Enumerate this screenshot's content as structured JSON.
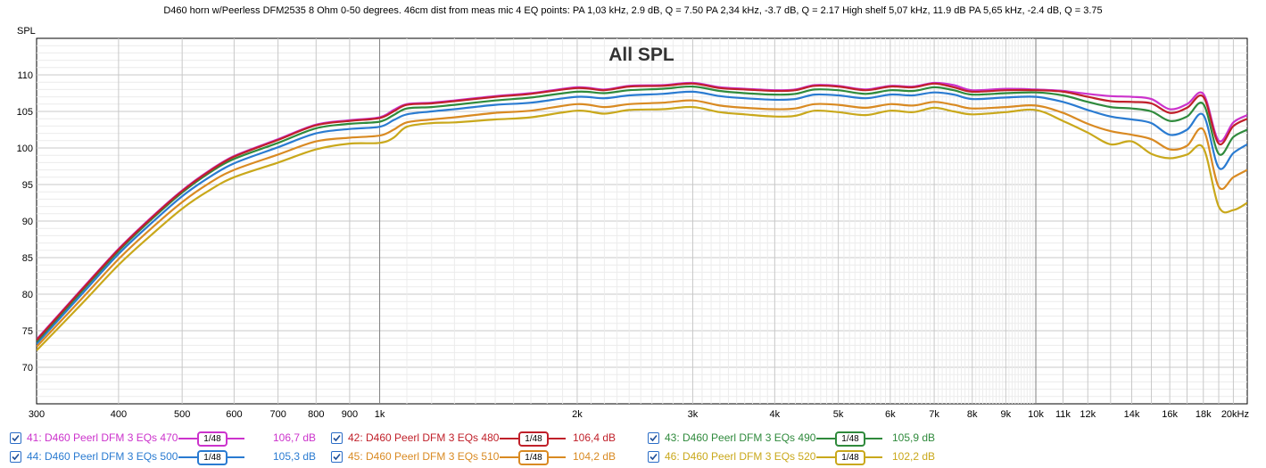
{
  "header": {
    "title": "D460 horn w/Peerless DFM2535 8 Ohm 0-50 degrees. 46cm dist from meas mic 4 EQ points: PA 1,03 kHz, 2.9 dB, Q = 7.50 PA 2,34 kHz, -3.7 dB, Q = 2.17 High shelf 5,07 kHz, 11.9 dB PA 5,65 kHz, -2.4 dB, Q = 3.75"
  },
  "chart_data": {
    "type": "line",
    "title": "All SPL",
    "ylabel": "SPL",
    "xlabel": "",
    "x_scale": "log",
    "xlim": [
      300,
      21000
    ],
    "ylim": [
      65,
      115
    ],
    "grid": true,
    "y_ticks": [
      "70",
      "75",
      "80",
      "85",
      "90",
      "95",
      "100",
      "105",
      "110"
    ],
    "y_tick_values": [
      70,
      75,
      80,
      85,
      90,
      95,
      100,
      105,
      110
    ],
    "x_ticks": [
      {
        "v": 300,
        "label": "300"
      },
      {
        "v": 400,
        "label": "400"
      },
      {
        "v": 500,
        "label": "500"
      },
      {
        "v": 600,
        "label": "600"
      },
      {
        "v": 700,
        "label": "700"
      },
      {
        "v": 800,
        "label": "800"
      },
      {
        "v": 900,
        "label": "900"
      },
      {
        "v": 1000,
        "label": "1k"
      },
      {
        "v": 2000,
        "label": "2k"
      },
      {
        "v": 3000,
        "label": "3k"
      },
      {
        "v": 4000,
        "label": "4k"
      },
      {
        "v": 5000,
        "label": "5k"
      },
      {
        "v": 6000,
        "label": "6k"
      },
      {
        "v": 7000,
        "label": "7k"
      },
      {
        "v": 8000,
        "label": "8k"
      },
      {
        "v": 9000,
        "label": "9k"
      },
      {
        "v": 10000,
        "label": "10k"
      },
      {
        "v": 11000,
        "label": "11k"
      },
      {
        "v": 12000,
        "label": "12k"
      },
      {
        "v": 14000,
        "label": "14k"
      },
      {
        "v": 16000,
        "label": "16k"
      },
      {
        "v": 18000,
        "label": "18k"
      },
      {
        "v": 20000,
        "label": "20kHz"
      }
    ],
    "x": [
      300,
      350,
      400,
      450,
      500,
      550,
      600,
      700,
      800,
      900,
      1000,
      1050,
      1100,
      1200,
      1300,
      1500,
      1700,
      2000,
      2200,
      2400,
      2700,
      3000,
      3300,
      3600,
      4000,
      4300,
      4600,
      5000,
      5500,
      6000,
      6500,
      7000,
      7500,
      8000,
      9000,
      10000,
      11000,
      12000,
      13000,
      14000,
      15000,
      16000,
      17000,
      18000,
      19000,
      20000,
      21000
    ],
    "series": [
      {
        "name": "41: D460 Peerl DFM 3 EQs 470",
        "color": "#cc33cc",
        "values": [
          73.8,
          80.5,
          86.2,
          90.6,
          94.2,
          96.9,
          98.9,
          101.2,
          103.2,
          103.8,
          104.2,
          105.2,
          106.0,
          106.2,
          106.5,
          107.1,
          107.5,
          108.3,
          108.0,
          108.5,
          108.6,
          108.9,
          108.3,
          108.1,
          107.9,
          108.0,
          108.6,
          108.5,
          108.0,
          108.5,
          108.4,
          108.9,
          108.6,
          107.9,
          108.1,
          108.0,
          107.8,
          107.4,
          107.1,
          107.0,
          106.7,
          105.3,
          106.0,
          107.4,
          101.0,
          103.5,
          104.5
        ]
      },
      {
        "name": "42: D460 Peerl DFM 3 EQs 480",
        "color": "#c0202a",
        "values": [
          73.7,
          80.4,
          86.1,
          90.5,
          94.1,
          96.8,
          98.8,
          101.1,
          103.1,
          103.7,
          104.1,
          105.0,
          105.9,
          106.1,
          106.4,
          107.0,
          107.4,
          108.2,
          107.9,
          108.4,
          108.5,
          108.8,
          108.2,
          108.0,
          107.8,
          107.9,
          108.5,
          108.4,
          107.9,
          108.4,
          108.3,
          108.8,
          108.3,
          107.7,
          107.9,
          107.9,
          107.7,
          107.0,
          106.4,
          106.3,
          106.1,
          104.8,
          105.5,
          107.0,
          100.6,
          103.0,
          104.0
        ]
      },
      {
        "name": "43: D460 Peerl DFM 3 EQs 490",
        "color": "#2f8a3c",
        "values": [
          73.5,
          80.2,
          85.9,
          90.3,
          93.9,
          96.6,
          98.5,
          100.7,
          102.7,
          103.3,
          103.6,
          104.5,
          105.4,
          105.6,
          105.9,
          106.5,
          106.9,
          107.7,
          107.5,
          107.9,
          108.1,
          108.4,
          107.8,
          107.5,
          107.3,
          107.4,
          108.0,
          107.9,
          107.4,
          107.9,
          107.8,
          108.3,
          107.9,
          107.3,
          107.5,
          107.6,
          107.2,
          106.3,
          105.6,
          105.4,
          105.0,
          103.7,
          104.3,
          106.0,
          99.2,
          101.5,
          102.5
        ]
      },
      {
        "name": "44: D460 Peerl DFM 3 EQs 500",
        "color": "#2a7bd1",
        "values": [
          73.2,
          79.8,
          85.5,
          89.8,
          93.4,
          96.0,
          97.9,
          100.1,
          102.0,
          102.6,
          102.9,
          103.8,
          104.6,
          105.0,
          105.3,
          105.9,
          106.2,
          107.0,
          106.8,
          107.2,
          107.4,
          107.7,
          107.1,
          106.8,
          106.6,
          106.7,
          107.3,
          107.2,
          106.8,
          107.3,
          107.2,
          107.6,
          107.3,
          106.7,
          106.9,
          107.0,
          106.3,
          105.2,
          104.3,
          103.9,
          103.4,
          101.8,
          102.5,
          104.5,
          97.3,
          99.3,
          100.5
        ]
      },
      {
        "name": "45: D460 Peerl DFM 3 EQs 510",
        "color": "#d98a22",
        "values": [
          72.8,
          79.2,
          84.8,
          89.1,
          92.6,
          95.2,
          97.0,
          99.1,
          100.9,
          101.4,
          101.7,
          102.5,
          103.5,
          103.9,
          104.2,
          104.8,
          105.1,
          106.0,
          105.6,
          106.0,
          106.2,
          106.5,
          105.8,
          105.5,
          105.3,
          105.4,
          106.0,
          105.9,
          105.5,
          106.0,
          105.8,
          106.3,
          105.9,
          105.4,
          105.6,
          105.8,
          104.8,
          103.3,
          102.3,
          101.8,
          101.2,
          99.8,
          100.3,
          102.5,
          94.7,
          96.0,
          97.0
        ]
      },
      {
        "name": "46: D460 Peerl DFM 3 EQs 520",
        "color": "#c9a81b",
        "values": [
          72.3,
          78.5,
          84.0,
          88.2,
          91.7,
          94.2,
          96.0,
          98.0,
          99.8,
          100.6,
          100.7,
          101.4,
          102.9,
          103.4,
          103.5,
          103.9,
          104.2,
          105.1,
          104.7,
          105.2,
          105.3,
          105.6,
          104.9,
          104.6,
          104.3,
          104.4,
          105.1,
          104.9,
          104.5,
          105.1,
          104.9,
          105.5,
          105.0,
          104.6,
          104.9,
          105.2,
          103.7,
          102.1,
          100.5,
          100.9,
          99.2,
          98.6,
          99.1,
          100.0,
          92.0,
          91.5,
          92.5
        ]
      }
    ]
  },
  "legend": {
    "items": [
      {
        "label": "41: D460 Peerl DFM 3 EQs 470",
        "color": "#cc33cc",
        "smoothing": "1/48",
        "value": "106,7 dB"
      },
      {
        "label": "42: D460 Peerl DFM 3 EQs 480",
        "color": "#c0202a",
        "smoothing": "1/48",
        "value": "106,4 dB"
      },
      {
        "label": "43: D460 Peerl DFM 3 EQs 490",
        "color": "#2f8a3c",
        "smoothing": "1/48",
        "value": "105,9 dB"
      },
      {
        "label": "44: D460 Peerl DFM 3 EQs 500",
        "color": "#2a7bd1",
        "smoothing": "1/48",
        "value": "105,3 dB"
      },
      {
        "label": "45: D460 Peerl DFM 3 EQs 510",
        "color": "#d98a22",
        "smoothing": "1/48",
        "value": "104,2 dB"
      },
      {
        "label": "46: D460 Peerl DFM 3 EQs 520",
        "color": "#c9a81b",
        "smoothing": "1/48",
        "value": "102,2 dB"
      }
    ]
  }
}
